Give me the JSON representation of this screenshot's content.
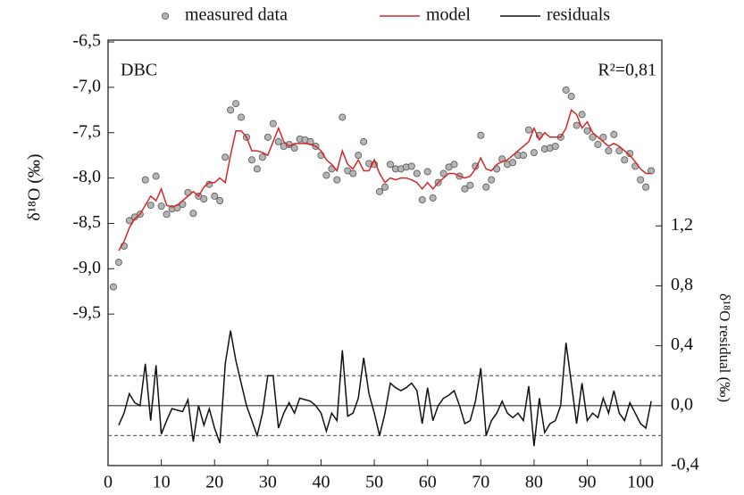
{
  "chart_data": {
    "type": "line",
    "title": null,
    "annotations": [
      "DBC",
      "R²=0,81"
    ],
    "ylabel": "δ¹⁸O (‰)",
    "y2label": "δ¹⁸O residual (‰)",
    "x": [
      1,
      2,
      3,
      4,
      5,
      6,
      7,
      8,
      9,
      10,
      11,
      12,
      13,
      14,
      15,
      16,
      17,
      18,
      19,
      20,
      21,
      22,
      23,
      24,
      25,
      26,
      27,
      28,
      29,
      30,
      31,
      32,
      33,
      34,
      35,
      36,
      37,
      38,
      39,
      40,
      41,
      42,
      43,
      44,
      45,
      46,
      47,
      48,
      49,
      50,
      51,
      52,
      53,
      54,
      55,
      56,
      57,
      58,
      59,
      60,
      61,
      62,
      63,
      64,
      65,
      66,
      67,
      68,
      69,
      70,
      71,
      72,
      73,
      74,
      75,
      76,
      77,
      78,
      79,
      80,
      81,
      82,
      83,
      84,
      85,
      86,
      87,
      88,
      89,
      90,
      91,
      92,
      93,
      94,
      95,
      96,
      97,
      98,
      99,
      100,
      101,
      102
    ],
    "series": [
      {
        "name": "measured data",
        "kind": "scatter",
        "color": "#9a9a9a",
        "values": [
          -9.2,
          -8.93,
          -8.75,
          -8.47,
          -8.43,
          -8.4,
          -8.02,
          -8.3,
          -7.98,
          -8.31,
          -8.4,
          -8.34,
          -8.33,
          -8.29,
          -8.16,
          -8.39,
          -8.2,
          -8.23,
          -8.07,
          -8.2,
          -8.25,
          -7.77,
          -7.25,
          -7.18,
          -7.33,
          -7.55,
          -7.8,
          -7.9,
          -7.77,
          -7.55,
          -7.4,
          -7.6,
          -7.65,
          -7.63,
          -7.67,
          -7.57,
          -7.58,
          -7.6,
          -7.65,
          -7.75,
          -7.97,
          -7.9,
          -8.02,
          -7.33,
          -7.92,
          -7.95,
          -7.75,
          -7.6,
          -7.84,
          -7.85,
          -8.15,
          -8.1,
          -7.85,
          -7.9,
          -7.9,
          -7.88,
          -7.87,
          -7.95,
          -8.24,
          -7.93,
          -8.22,
          -8.05,
          -7.95,
          -7.88,
          -7.85,
          -7.98,
          -8.12,
          -8.08,
          -7.87,
          -7.53,
          -8.1,
          -8.02,
          -7.9,
          -7.79,
          -7.85,
          -7.83,
          -7.75,
          -7.75,
          -7.47,
          -7.72,
          -7.53,
          -7.68,
          -7.67,
          -7.65,
          -7.55,
          -7.03,
          -7.1,
          -7.42,
          -7.3,
          -7.48,
          -7.55,
          -7.63,
          -7.55,
          -7.7,
          -7.52,
          -7.7,
          -7.8,
          -7.73,
          -7.87,
          -8.02,
          -8.1,
          -7.92
        ]
      },
      {
        "name": "model",
        "kind": "line",
        "color": "#d62728",
        "values": [
          null,
          -8.8,
          -8.7,
          -8.55,
          -8.45,
          -8.4,
          -8.3,
          -8.2,
          -8.25,
          -8.12,
          -8.3,
          -8.32,
          -8.3,
          -8.25,
          -8.2,
          -8.15,
          -8.2,
          -8.1,
          -8.05,
          -8.05,
          -8.0,
          -8.05,
          -7.75,
          -7.48,
          -7.48,
          -7.55,
          -7.7,
          -7.7,
          -7.72,
          -7.75,
          -7.6,
          -7.45,
          -7.6,
          -7.65,
          -7.62,
          -7.62,
          -7.62,
          -7.63,
          -7.65,
          -7.7,
          -7.8,
          -7.85,
          -7.92,
          -7.7,
          -7.85,
          -7.9,
          -7.8,
          -7.92,
          -7.92,
          -7.8,
          -7.95,
          -8.05,
          -8.0,
          -8.02,
          -8.0,
          -8.0,
          -8.02,
          -8.05,
          -8.12,
          -8.05,
          -8.12,
          -8.05,
          -8.0,
          -7.95,
          -7.95,
          -7.98,
          -8.0,
          -7.98,
          -7.9,
          -7.78,
          -7.9,
          -7.92,
          -7.85,
          -7.82,
          -7.8,
          -7.75,
          -7.7,
          -7.65,
          -7.6,
          -7.45,
          -7.58,
          -7.5,
          -7.55,
          -7.55,
          -7.55,
          -7.45,
          -7.25,
          -7.3,
          -7.45,
          -7.38,
          -7.5,
          -7.55,
          -7.6,
          -7.65,
          -7.62,
          -7.65,
          -7.7,
          -7.75,
          -7.82,
          -7.9,
          -7.95,
          -7.95
        ]
      },
      {
        "name": "residuals",
        "kind": "line",
        "axis": "y2",
        "color": "#111111",
        "values": [
          null,
          -0.13,
          -0.05,
          0.08,
          0.02,
          0.0,
          0.28,
          -0.1,
          0.27,
          -0.19,
          -0.1,
          -0.02,
          -0.03,
          -0.04,
          0.04,
          -0.24,
          0.0,
          -0.13,
          -0.02,
          -0.15,
          -0.25,
          0.28,
          0.5,
          0.3,
          0.15,
          0.0,
          -0.1,
          -0.2,
          -0.05,
          0.2,
          0.2,
          -0.15,
          -0.05,
          0.02,
          -0.05,
          0.05,
          0.04,
          0.03,
          0.0,
          -0.05,
          -0.17,
          -0.05,
          -0.1,
          0.37,
          -0.07,
          -0.05,
          0.05,
          0.32,
          0.08,
          -0.05,
          -0.2,
          -0.05,
          0.15,
          0.12,
          0.1,
          0.12,
          0.15,
          0.1,
          -0.12,
          0.12,
          -0.1,
          0.0,
          0.05,
          0.07,
          0.1,
          0.0,
          -0.12,
          -0.1,
          0.03,
          0.25,
          -0.2,
          -0.1,
          -0.05,
          0.03,
          -0.05,
          -0.08,
          -0.05,
          -0.1,
          0.13,
          -0.27,
          0.05,
          -0.18,
          -0.12,
          -0.1,
          0.0,
          0.42,
          0.15,
          -0.12,
          0.15,
          -0.1,
          -0.05,
          -0.08,
          0.05,
          -0.05,
          0.1,
          -0.05,
          -0.1,
          0.02,
          -0.05,
          -0.12,
          -0.15,
          0.03
        ]
      }
    ],
    "y2_reference_lines": [
      {
        "value": -0.2,
        "style": "dashed"
      },
      {
        "value": 0.0,
        "style": "solid"
      },
      {
        "value": 0.2,
        "style": "dashed"
      }
    ],
    "xlim": [
      0,
      104
    ],
    "xticks": [
      0,
      10,
      20,
      30,
      40,
      50,
      60,
      70,
      80,
      90,
      100
    ],
    "ylim": [
      -11.17,
      -6.48
    ],
    "yticks": [
      {
        "value": -6.5,
        "label": "-6,5"
      },
      {
        "value": -7.0,
        "label": "-7,0"
      },
      {
        "value": -7.5,
        "label": "-7,5"
      },
      {
        "value": -8.0,
        "label": "-8,0"
      },
      {
        "value": -8.5,
        "label": "-8,5"
      },
      {
        "value": -9.0,
        "label": "-9,0"
      },
      {
        "value": -9.5,
        "label": "-9,5"
      }
    ],
    "y2lim": [
      -0.4,
      2.44
    ],
    "y2ticks": [
      {
        "value": -0.4,
        "label": "-0,4"
      },
      {
        "value": 0.0,
        "label": "0,0"
      },
      {
        "value": 0.4,
        "label": "0,4"
      },
      {
        "value": 0.8,
        "label": "0,8"
      },
      {
        "value": 1.2,
        "label": "1,2"
      }
    ],
    "legend": "top",
    "grid": false
  }
}
